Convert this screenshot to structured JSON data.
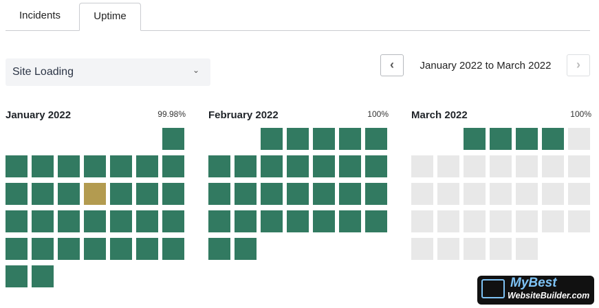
{
  "tabs": [
    {
      "label": "Incidents",
      "active": false
    },
    {
      "label": "Uptime",
      "active": true
    }
  ],
  "monitor_select": {
    "value": "Site Loading",
    "icon": "chevron-down-icon"
  },
  "date_nav": {
    "range": "January 2022 to March 2022",
    "prev_icon": "chevron-left-icon",
    "next_icon": "chevron-right-icon",
    "next_disabled": true
  },
  "colors": {
    "up": "#327a61",
    "degraded": "#b39b50",
    "no_data": "#e8e8e8"
  },
  "months": [
    {
      "title": "January 2022",
      "uptime": "99.98%",
      "days": 31,
      "first_weekday": 6,
      "degraded_days": [
        12
      ],
      "no_data_from": null
    },
    {
      "title": "February 2022",
      "uptime": "100%",
      "days": 28,
      "first_weekday": 2,
      "degraded_days": [],
      "no_data_from": null
    },
    {
      "title": "March 2022",
      "uptime": "100%",
      "days": 31,
      "first_weekday": 2,
      "degraded_days": [],
      "no_data_from": 5
    }
  ],
  "watermark": {
    "line1": "MyBest",
    "line2": "WebsiteBuilder.com"
  }
}
